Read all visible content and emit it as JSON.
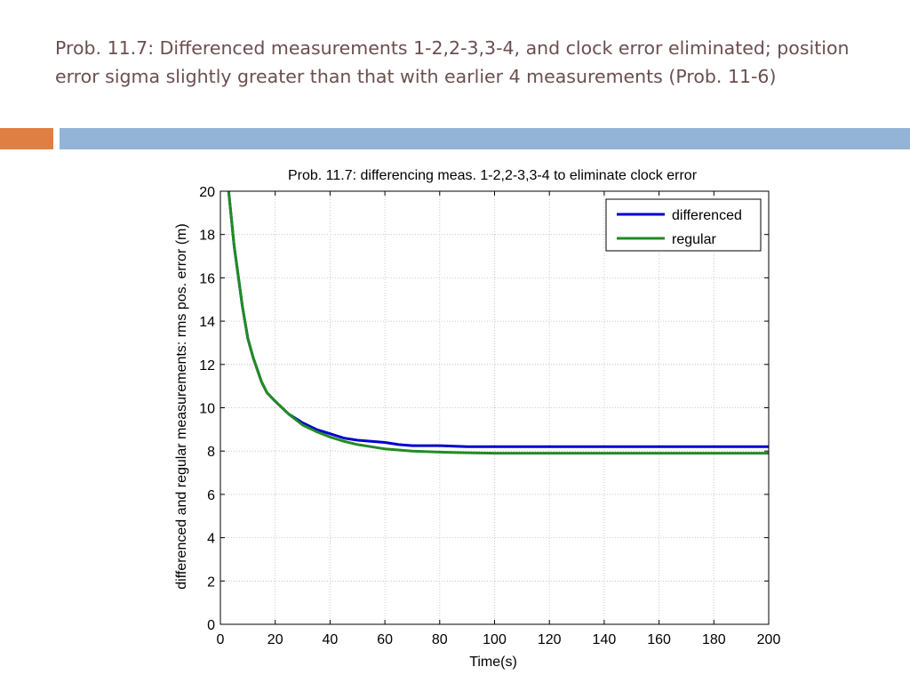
{
  "slide": {
    "title": "Prob. 11.7: Differenced measurements 1-2,2-3,3-4, and clock error eliminated; position error sigma slightly greater than that with earlier 4 measurements (Prob. 11-6)"
  },
  "colors": {
    "accent_orange": "#e07f43",
    "accent_blue": "#93b4d6",
    "title_text": "#6b4f4f"
  },
  "chart_data": {
    "type": "line",
    "title": "Prob. 11.7: differencing meas. 1-2,2-3,3-4 to eliminate clock error",
    "xlabel": "Time(s)",
    "ylabel": "differenced and regular measurements: rms pos. error (m)",
    "xlim": [
      0,
      200
    ],
    "ylim": [
      0,
      20
    ],
    "xticks": [
      0,
      20,
      40,
      60,
      80,
      100,
      120,
      140,
      160,
      180,
      200
    ],
    "yticks": [
      0,
      2,
      4,
      6,
      8,
      10,
      12,
      14,
      16,
      18,
      20
    ],
    "grid": true,
    "legend_position": "top-right",
    "series": [
      {
        "name": "differenced",
        "color": "#0000cc",
        "x": [
          3,
          5,
          8,
          10,
          12,
          15,
          17,
          20,
          25,
          30,
          35,
          40,
          45,
          50,
          55,
          60,
          65,
          70,
          80,
          90,
          100,
          120,
          140,
          160,
          180,
          200
        ],
        "y": [
          20.0,
          17.5,
          14.7,
          13.2,
          12.3,
          11.2,
          10.7,
          10.3,
          9.7,
          9.3,
          9.0,
          8.8,
          8.6,
          8.5,
          8.45,
          8.4,
          8.3,
          8.25,
          8.25,
          8.2,
          8.2,
          8.2,
          8.2,
          8.2,
          8.2,
          8.2
        ]
      },
      {
        "name": "regular",
        "color": "#228b22",
        "x": [
          3,
          5,
          8,
          10,
          12,
          15,
          17,
          20,
          25,
          30,
          35,
          40,
          45,
          50,
          55,
          60,
          65,
          70,
          80,
          90,
          100,
          120,
          140,
          160,
          180,
          200
        ],
        "y": [
          20.0,
          17.5,
          14.7,
          13.2,
          12.3,
          11.2,
          10.7,
          10.3,
          9.7,
          9.2,
          8.9,
          8.65,
          8.45,
          8.3,
          8.2,
          8.1,
          8.05,
          8.0,
          7.95,
          7.92,
          7.9,
          7.9,
          7.9,
          7.9,
          7.9,
          7.9
        ]
      }
    ]
  }
}
